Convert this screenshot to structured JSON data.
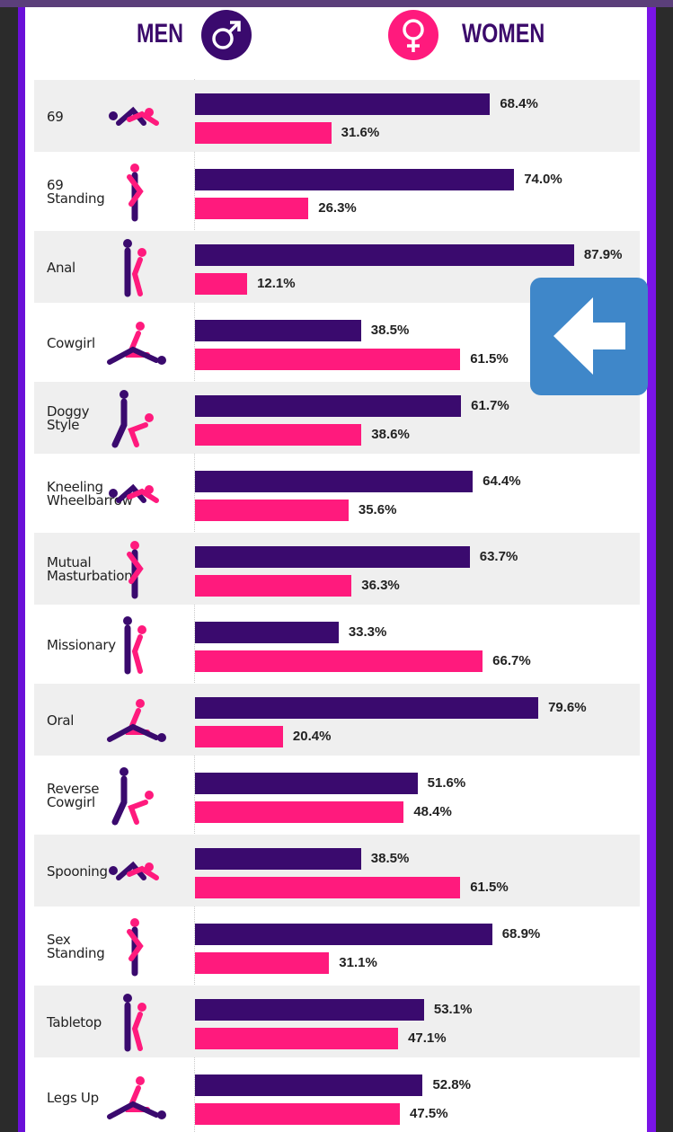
{
  "legend": {
    "men_label": "MEN",
    "women_label": "WOMEN",
    "men_icon": "male-symbol-icon",
    "women_icon": "female-symbol-icon"
  },
  "colors": {
    "men": "#3a0a6e",
    "women": "#ff1a7d",
    "row_shade": "#efefef",
    "back_button": "#3f87c9"
  },
  "back_button": {
    "icon": "arrow-left-icon"
  },
  "chart_data": {
    "type": "bar",
    "orientation": "horizontal",
    "categories": [
      "69",
      "69\nStanding",
      "Anal",
      "Cowgirl",
      "Doggy\nStyle",
      "Kneeling\nWheelbarrow",
      "Mutual\nMasturbation",
      "Missionary",
      "Oral",
      "Reverse\nCowgirl",
      "Spooning",
      "Sex\nStanding",
      "Tabletop",
      "Legs Up"
    ],
    "series": [
      {
        "name": "MEN",
        "values": [
          68.4,
          74.0,
          87.9,
          38.5,
          61.7,
          64.4,
          63.7,
          33.3,
          79.6,
          51.6,
          38.5,
          68.9,
          53.1,
          52.8
        ]
      },
      {
        "name": "WOMEN",
        "values": [
          31.6,
          26.3,
          12.1,
          61.5,
          38.6,
          35.6,
          36.3,
          66.7,
          20.4,
          48.4,
          61.5,
          31.1,
          47.1,
          47.5
        ]
      }
    ],
    "value_labels": {
      "MEN": [
        "68.4%",
        "74.0%",
        "87.9%",
        "38.5%",
        "61.7%",
        "64.4%",
        "63.7%",
        "33.3%",
        "79.6%",
        "51.6%",
        "38.5%",
        "68.9%",
        "53.1%",
        "52.8%"
      ],
      "WOMEN": [
        "31.6%",
        "26.3%",
        "12.1%",
        "61.5%",
        "38.6%",
        "35.6%",
        "36.3%",
        "66.7%",
        "20.4%",
        "48.4%",
        "61.5%",
        "31.1%",
        "47.1%",
        "47.5%"
      ]
    },
    "xlim": [
      0,
      100
    ],
    "unit": "%",
    "grid": false,
    "legend_position": "top"
  }
}
